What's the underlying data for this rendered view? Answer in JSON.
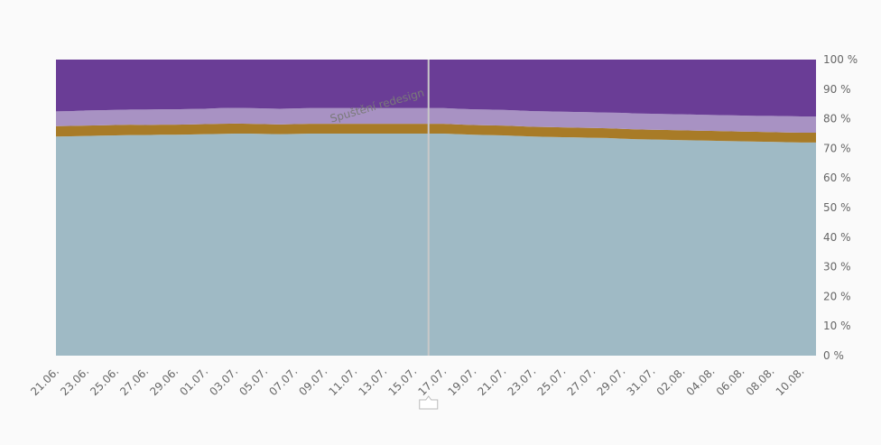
{
  "chart_data": {
    "type": "area",
    "stacked": true,
    "normalized": true,
    "categories": [
      "21.06.",
      "22.06.",
      "23.06.",
      "24.06.",
      "25.06.",
      "26.06.",
      "27.06.",
      "28.06.",
      "29.06.",
      "30.06.",
      "01.07.",
      "02.07.",
      "03.07.",
      "04.07.",
      "05.07.",
      "06.07.",
      "07.07.",
      "08.07.",
      "09.07.",
      "10.07.",
      "11.07.",
      "12.07.",
      "13.07.",
      "14.07.",
      "15.07.",
      "16.07.",
      "17.07.",
      "18.07.",
      "19.07.",
      "20.07.",
      "21.07.",
      "22.07.",
      "23.07.",
      "24.07.",
      "25.07.",
      "26.07.",
      "27.07.",
      "28.07.",
      "29.07.",
      "30.07.",
      "31.07.",
      "01.08.",
      "02.08.",
      "03.08.",
      "04.08.",
      "05.08.",
      "06.08.",
      "07.08.",
      "08.08.",
      "09.08.",
      "10.08.",
      "11.08."
    ],
    "xtick_labels": [
      "21.06.",
      "23.06.",
      "25.06.",
      "27.06.",
      "29.06.",
      "01.07.",
      "03.07.",
      "05.07.",
      "07.07.",
      "09.07.",
      "11.07.",
      "13.07.",
      "15.07.",
      "17.07.",
      "19.07.",
      "21.07.",
      "23.07.",
      "25.07.",
      "27.07.",
      "29.07.",
      "31.07.",
      "02.08.",
      "04.08.",
      "06.08.",
      "08.08.",
      "10.08."
    ],
    "series": [
      {
        "color": "#9fbac5",
        "values": [
          74.0,
          74.1,
          74.2,
          74.3,
          74.4,
          74.5,
          74.5,
          74.6,
          74.6,
          74.7,
          74.8,
          74.9,
          75.0,
          75.0,
          74.9,
          74.8,
          74.9,
          75.0,
          75.0,
          75.0,
          75.0,
          75.0,
          75.0,
          75.0,
          75.0,
          75.0,
          75.0,
          74.8,
          74.6,
          74.5,
          74.4,
          74.2,
          74.0,
          73.9,
          73.8,
          73.7,
          73.6,
          73.5,
          73.3,
          73.1,
          73.0,
          72.9,
          72.8,
          72.7,
          72.6,
          72.5,
          72.4,
          72.3,
          72.2,
          72.1,
          72.0,
          72.0
        ]
      },
      {
        "color": "#a87b27",
        "values": [
          3.5,
          3.5,
          3.5,
          3.5,
          3.5,
          3.5,
          3.4,
          3.4,
          3.4,
          3.4,
          3.4,
          3.4,
          3.4,
          3.3,
          3.3,
          3.3,
          3.3,
          3.3,
          3.3,
          3.3,
          3.3,
          3.3,
          3.3,
          3.3,
          3.3,
          3.3,
          3.3,
          3.3,
          3.3,
          3.3,
          3.3,
          3.3,
          3.3,
          3.3,
          3.3,
          3.3,
          3.3,
          3.3,
          3.3,
          3.3,
          3.3,
          3.3,
          3.3,
          3.3,
          3.3,
          3.3,
          3.3,
          3.3,
          3.3,
          3.3,
          3.3,
          3.3
        ]
      },
      {
        "color": "#a892c3",
        "values": [
          5.0,
          5.0,
          5.1,
          5.1,
          5.1,
          5.1,
          5.2,
          5.2,
          5.2,
          5.2,
          5.2,
          5.3,
          5.3,
          5.3,
          5.3,
          5.3,
          5.3,
          5.3,
          5.3,
          5.3,
          5.3,
          5.3,
          5.3,
          5.3,
          5.3,
          5.3,
          5.3,
          5.3,
          5.3,
          5.3,
          5.3,
          5.3,
          5.3,
          5.3,
          5.3,
          5.3,
          5.3,
          5.3,
          5.4,
          5.4,
          5.4,
          5.4,
          5.4,
          5.4,
          5.4,
          5.4,
          5.4,
          5.4,
          5.5,
          5.5,
          5.5,
          5.5
        ]
      },
      {
        "color": "#6a3d96",
        "values": [
          17.5,
          17.4,
          17.2,
          17.1,
          17.0,
          16.9,
          16.9,
          16.8,
          16.8,
          16.7,
          16.6,
          16.4,
          16.3,
          16.4,
          16.5,
          16.6,
          16.5,
          16.4,
          16.4,
          16.4,
          16.4,
          16.4,
          16.4,
          16.4,
          16.4,
          16.4,
          16.4,
          16.6,
          16.8,
          16.9,
          17.0,
          17.2,
          17.4,
          17.5,
          17.6,
          17.7,
          17.8,
          17.9,
          18.0,
          18.2,
          18.3,
          18.4,
          18.5,
          18.6,
          18.7,
          18.8,
          18.9,
          19.0,
          19.0,
          19.1,
          19.2,
          19.2
        ]
      }
    ],
    "y_ticks": [
      "0 %",
      "10 %",
      "20 %",
      "30 %",
      "40 %",
      "50 %",
      "60 %",
      "70 %",
      "80 %",
      "90 %",
      "100 %"
    ],
    "ylim": [
      0,
      100
    ],
    "annotation": {
      "label": "Spuštění redesign",
      "at": "16.07."
    },
    "grid": false,
    "legend": "none"
  },
  "colors": {
    "marker_line": "#c8c8c8",
    "axis_text": "#666666",
    "background": "#fafafa"
  }
}
